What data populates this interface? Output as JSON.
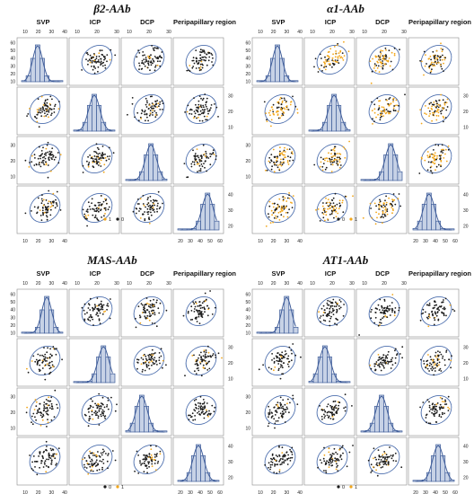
{
  "colors": {
    "point_negative": "#1a1a1a",
    "point_positive": "#f2a61a",
    "ellipse": "#4d6fae",
    "hist_fill": "#c7d2e6",
    "hist_stroke": "#3e5c99",
    "density": "#3e5c99",
    "panel_border": "#8a8a8a"
  },
  "chart_data": [
    {
      "type": "scatter",
      "title": "β2-AAb",
      "variables": [
        "SVP",
        "ICP",
        "DCP",
        "Peripapillary  region"
      ],
      "axis_ticks": {
        "SVP": [
          10,
          20,
          30,
          40
        ],
        "ICP": [
          10,
          20,
          30
        ],
        "DCP": [
          10,
          20,
          30
        ],
        "Peripapillary  region": [
          20,
          30,
          40,
          50,
          60
        ]
      },
      "left_axis_ticks": {
        "SVP": [
          10,
          20,
          30,
          40,
          50,
          60
        ],
        "DCP": [
          10,
          20,
          30
        ]
      },
      "right_axis_ticks": {
        "ICP": [
          10,
          20,
          30
        ],
        "Peripapillary  region": [
          20,
          30,
          40
        ]
      },
      "legend": [
        {
          "label": "0",
          "color": "#1a1a1a"
        },
        {
          "label": "1",
          "color": "#f2a61a"
        }
      ],
      "legend_order": [
        1,
        0
      ]
    },
    {
      "type": "scatter",
      "title": "α1-AAb",
      "variables": [
        "SVP",
        "ICP",
        "DCP",
        "Peripapillary  region"
      ],
      "axis_ticks": {
        "SVP": [
          10,
          20,
          30,
          40
        ],
        "ICP": [
          10,
          20,
          30
        ],
        "DCP": [
          10,
          20,
          30
        ],
        "Peripapillary  region": [
          20,
          30,
          40,
          50,
          60
        ]
      },
      "left_axis_ticks": {
        "SVP": [
          10,
          20,
          30,
          40,
          50,
          60
        ],
        "DCP": [
          10,
          20,
          30
        ]
      },
      "right_axis_ticks": {
        "ICP": [
          10,
          20,
          30
        ],
        "Peripapillary  region": [
          20,
          30,
          40
        ]
      },
      "legend": [
        {
          "label": "0",
          "color": "#1a1a1a"
        },
        {
          "label": "1",
          "color": "#f2a61a"
        }
      ],
      "legend_order": [
        0,
        1
      ]
    },
    {
      "type": "scatter",
      "title": "MAS-AAb",
      "variables": [
        "SVP",
        "ICP",
        "DCP",
        "Peripapillary  region"
      ],
      "axis_ticks": {
        "SVP": [
          10,
          20,
          30,
          40
        ],
        "ICP": [
          10,
          20,
          30
        ],
        "DCP": [
          10,
          20,
          30
        ],
        "Peripapillary  region": [
          20,
          30,
          40,
          50,
          60
        ]
      },
      "left_axis_ticks": {
        "SVP": [
          10,
          20,
          30,
          40,
          50,
          60
        ],
        "DCP": [
          10,
          20,
          30
        ]
      },
      "right_axis_ticks": {
        "ICP": [
          10,
          20,
          30
        ],
        "Peripapillary  region": [
          20,
          30,
          40
        ]
      },
      "legend": [
        {
          "label": "0",
          "color": "#1a1a1a"
        },
        {
          "label": "1",
          "color": "#f2a61a"
        }
      ],
      "legend_order": [
        0,
        1
      ]
    },
    {
      "type": "scatter",
      "title": "AT1-AAb",
      "variables": [
        "SVP",
        "ICP",
        "DCP",
        "Peripapillary  region"
      ],
      "axis_ticks": {
        "SVP": [
          10,
          20,
          30,
          40
        ],
        "ICP": [
          10,
          20,
          30
        ],
        "DCP": [
          10,
          20,
          30
        ],
        "Peripapillary  region": [
          20,
          30,
          40,
          50,
          60
        ]
      },
      "left_axis_ticks": {
        "SVP": [
          10,
          20,
          30,
          40,
          50,
          60
        ],
        "DCP": [
          10,
          20,
          30
        ]
      },
      "right_axis_ticks": {
        "ICP": [
          10,
          20,
          30
        ],
        "Peripapillary  region": [
          20,
          30,
          40
        ]
      },
      "legend": [
        {
          "label": "0",
          "color": "#1a1a1a"
        },
        {
          "label": "1",
          "color": "#f2a61a"
        }
      ],
      "legend_order": [
        0,
        1
      ]
    }
  ]
}
